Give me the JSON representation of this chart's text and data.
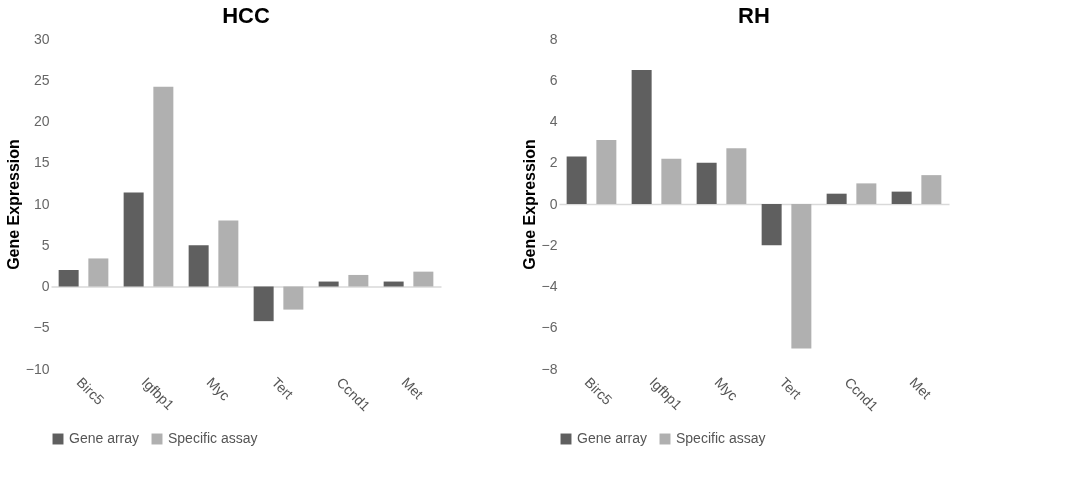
{
  "chart_data": [
    {
      "type": "bar",
      "title": "HCC",
      "ylabel": "Gene Expression",
      "categories": [
        "Birc5",
        "Igfbp1",
        "Myc",
        "Tert",
        "Ccnd1",
        "Met"
      ],
      "series": [
        {
          "name": "Gene array",
          "color": "#5f5f5f",
          "values": [
            2.0,
            11.4,
            5.0,
            -4.2,
            0.6,
            0.6
          ]
        },
        {
          "name": "Specific assay",
          "color": "#b0b0b0",
          "values": [
            3.4,
            24.2,
            8.0,
            -2.8,
            1.4,
            1.8
          ]
        }
      ],
      "ylim": [
        -10,
        30
      ],
      "yticks": [
        -10,
        -5,
        0,
        5,
        10,
        15,
        20,
        25,
        30
      ],
      "legend": "bottom"
    },
    {
      "type": "bar",
      "title": "RH",
      "ylabel": "Gene Expression",
      "categories": [
        "Birc5",
        "Igfbp1",
        "Myc",
        "Tert",
        "Ccnd1",
        "Met"
      ],
      "series": [
        {
          "name": "Gene array",
          "color": "#5f5f5f",
          "values": [
            2.3,
            6.5,
            2.0,
            -2.0,
            0.5,
            0.6
          ]
        },
        {
          "name": "Specific assay",
          "color": "#b0b0b0",
          "values": [
            3.1,
            2.2,
            2.7,
            -7.0,
            1.0,
            1.4
          ]
        }
      ],
      "ylim": [
        -8,
        8
      ],
      "yticks": [
        -8,
        -6,
        -4,
        -2,
        0,
        2,
        4,
        6,
        8
      ],
      "legend": "bottom"
    }
  ]
}
